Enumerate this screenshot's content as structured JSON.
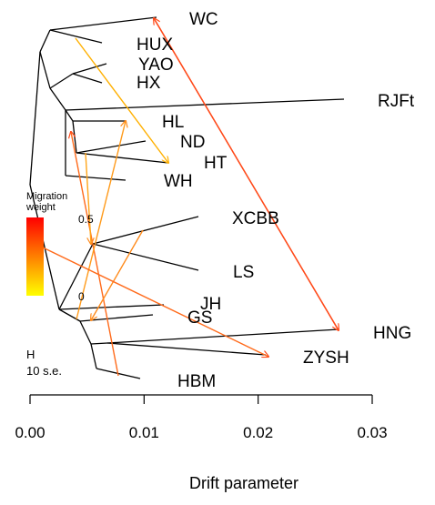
{
  "x_axis": {
    "title": "Drift parameter",
    "ticks": [
      {
        "value": 0.0,
        "label": "0.00"
      },
      {
        "value": 0.01,
        "label": "0.01"
      },
      {
        "value": 0.02,
        "label": "0.02"
      },
      {
        "value": 0.03,
        "label": "0.03"
      }
    ]
  },
  "legend": {
    "title_line1": "Migration",
    "title_line2": "weight",
    "max_label": "0.5",
    "min_label": "0",
    "colors": [
      "#ff0000",
      "#ff8000",
      "#ffff00"
    ]
  },
  "scale_bar": {
    "marker": "H",
    "label": "10 s.e."
  },
  "populations": [
    "WC",
    "HUX",
    "YAO",
    "HX",
    "RJFt",
    "HL",
    "ND",
    "HT",
    "WH",
    "XCBB",
    "LS",
    "JH",
    "GS",
    "HNG",
    "ZYSH",
    "HBM"
  ],
  "colors": {
    "tree": "#000000",
    "migration_high": "#ff2a00",
    "migration_mid": "#ff8000",
    "migration_low": "#ffcc00"
  }
}
